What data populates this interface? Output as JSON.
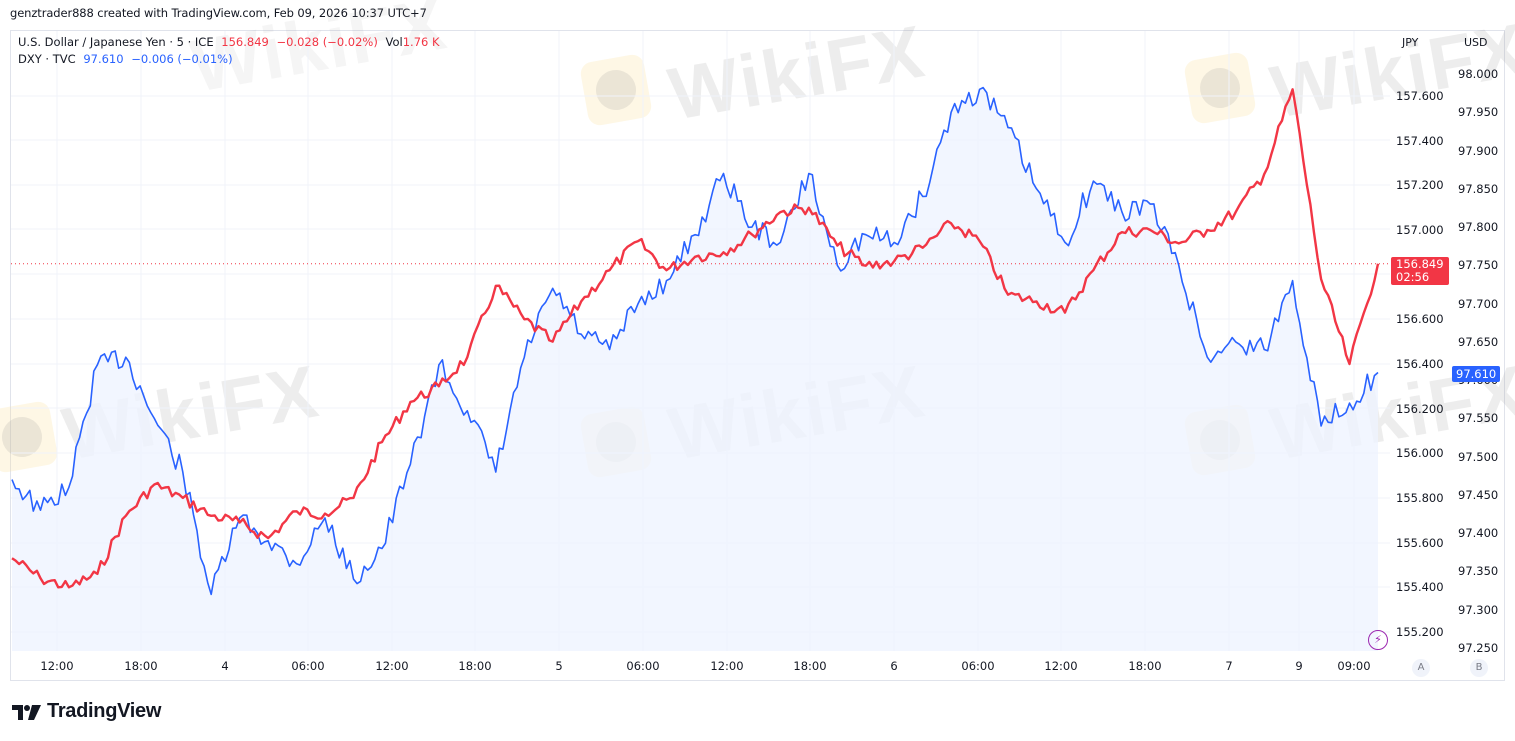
{
  "header": {
    "credit": "genztrader888 created with TradingView.com, Feb 09, 2026 10:37 UTC+7"
  },
  "legend": {
    "main": {
      "name": "U.S. Dollar / Japanese Yen · 5 · ICE",
      "price": "156.849",
      "change": "−0.028 (−0.02%)",
      "vol_label": "Vol",
      "vol_value": "1.76 K"
    },
    "compare": {
      "name": "DXY · TVC",
      "price": "97.610",
      "change": "−0.006 (−0.01%)"
    }
  },
  "axes": {
    "left_scale_head": "JPY",
    "right_scale_head": "USD",
    "scale_buttons": [
      "A",
      "B"
    ]
  },
  "price_tags": {
    "usdjpy_price": "156.849",
    "usdjpy_countdown": "02:56",
    "dxy_price": "97.610"
  },
  "colors": {
    "usdjpy_line": "#f23645",
    "dxy_line": "#2962ff",
    "dxy_area_fill": "#eef3ff",
    "grid": "#f0f3fa"
  },
  "footer": {
    "brand": "TradingView"
  },
  "watermark": "WikiFX",
  "chart_data": {
    "type": "line",
    "title": "U.S. Dollar / Japanese Yen (5m, ICE) vs DXY (TVC)",
    "xlabel": "",
    "x_tick_labels": [
      "12:00",
      "18:00",
      "4",
      "06:00",
      "12:00",
      "18:00",
      "5",
      "06:00",
      "12:00",
      "18:00",
      "6",
      "06:00",
      "12:00",
      "18:00",
      "7",
      "9",
      "09:00"
    ],
    "legend_position": "top-left",
    "grid": true,
    "y_axes": [
      {
        "name": "JPY",
        "series": "USDJPY",
        "ticks": [
          "157.600",
          "157.400",
          "157.200",
          "157.000",
          "156.600",
          "156.400",
          "156.200",
          "156.000",
          "155.800",
          "155.600",
          "155.400",
          "155.200"
        ],
        "ylim": [
          155.1,
          157.75
        ]
      },
      {
        "name": "USD",
        "series": "DXY",
        "ticks": [
          "98.000",
          "97.950",
          "97.900",
          "97.850",
          "97.800",
          "97.750",
          "97.700",
          "97.650",
          "97.600",
          "97.550",
          "97.500",
          "97.450",
          "97.400",
          "97.350",
          "97.300",
          "97.250"
        ],
        "ylim": [
          97.22,
          98.01
        ]
      }
    ],
    "x": [
      "Feb3 10:00",
      "Feb3 12:00",
      "Feb3 14:00",
      "Feb3 16:00",
      "Feb3 18:00",
      "Feb3 20:00",
      "Feb3 22:00",
      "Feb4 00:00",
      "Feb4 02:00",
      "Feb4 04:00",
      "Feb4 06:00",
      "Feb4 08:00",
      "Feb4 10:00",
      "Feb4 12:00",
      "Feb4 14:00",
      "Feb4 16:00",
      "Feb4 18:00",
      "Feb4 20:00",
      "Feb4 22:00",
      "Feb5 00:00",
      "Feb5 02:00",
      "Feb5 04:00",
      "Feb5 06:00",
      "Feb5 08:00",
      "Feb5 10:00",
      "Feb5 12:00",
      "Feb5 14:00",
      "Feb5 16:00",
      "Feb5 18:00",
      "Feb5 20:00",
      "Feb5 22:00",
      "Feb6 00:00",
      "Feb6 02:00",
      "Feb6 04:00",
      "Feb6 06:00",
      "Feb6 08:00",
      "Feb6 10:00",
      "Feb6 12:00",
      "Feb6 14:00",
      "Feb6 16:00",
      "Feb6 18:00",
      "Feb6 20:00",
      "Feb6 22:00",
      "Feb9 00:00",
      "Feb9 02:00",
      "Feb9 04:00",
      "Feb9 06:00",
      "Feb9 08:00",
      "Feb9 10:30"
    ],
    "series": [
      {
        "name": "USD/JPY (ICE, 5m)",
        "axis": "JPY",
        "color": "#f23645",
        "values": [
          155.53,
          155.44,
          155.4,
          155.46,
          155.72,
          155.86,
          155.8,
          155.72,
          155.69,
          155.62,
          155.74,
          155.73,
          155.8,
          156.05,
          156.23,
          156.3,
          156.43,
          156.75,
          156.6,
          156.5,
          156.68,
          156.82,
          156.95,
          156.82,
          156.88,
          156.9,
          156.98,
          157.08,
          157.1,
          156.93,
          156.84,
          156.86,
          156.92,
          157.03,
          156.95,
          156.71,
          156.68,
          156.63,
          156.82,
          156.99,
          157.0,
          156.94,
          157.0,
          157.08,
          157.25,
          157.63,
          156.78,
          156.4,
          156.849
        ]
      },
      {
        "name": "DXY (TVC)",
        "axis": "USD",
        "color": "#2962ff",
        "values": [
          97.47,
          97.43,
          97.46,
          97.62,
          97.63,
          97.55,
          97.48,
          97.32,
          97.42,
          97.39,
          97.36,
          97.42,
          97.34,
          97.38,
          97.49,
          97.62,
          97.56,
          97.48,
          97.63,
          97.72,
          97.66,
          97.64,
          97.7,
          97.73,
          97.79,
          97.87,
          97.8,
          97.78,
          97.87,
          97.75,
          97.79,
          97.78,
          97.84,
          97.95,
          97.98,
          97.93,
          97.85,
          97.78,
          97.86,
          97.82,
          97.83,
          97.75,
          97.63,
          97.65,
          97.64,
          97.73,
          97.54,
          97.57,
          97.61
        ]
      }
    ],
    "current_values": {
      "USDJPY": 156.849,
      "DXY": 97.61
    }
  }
}
